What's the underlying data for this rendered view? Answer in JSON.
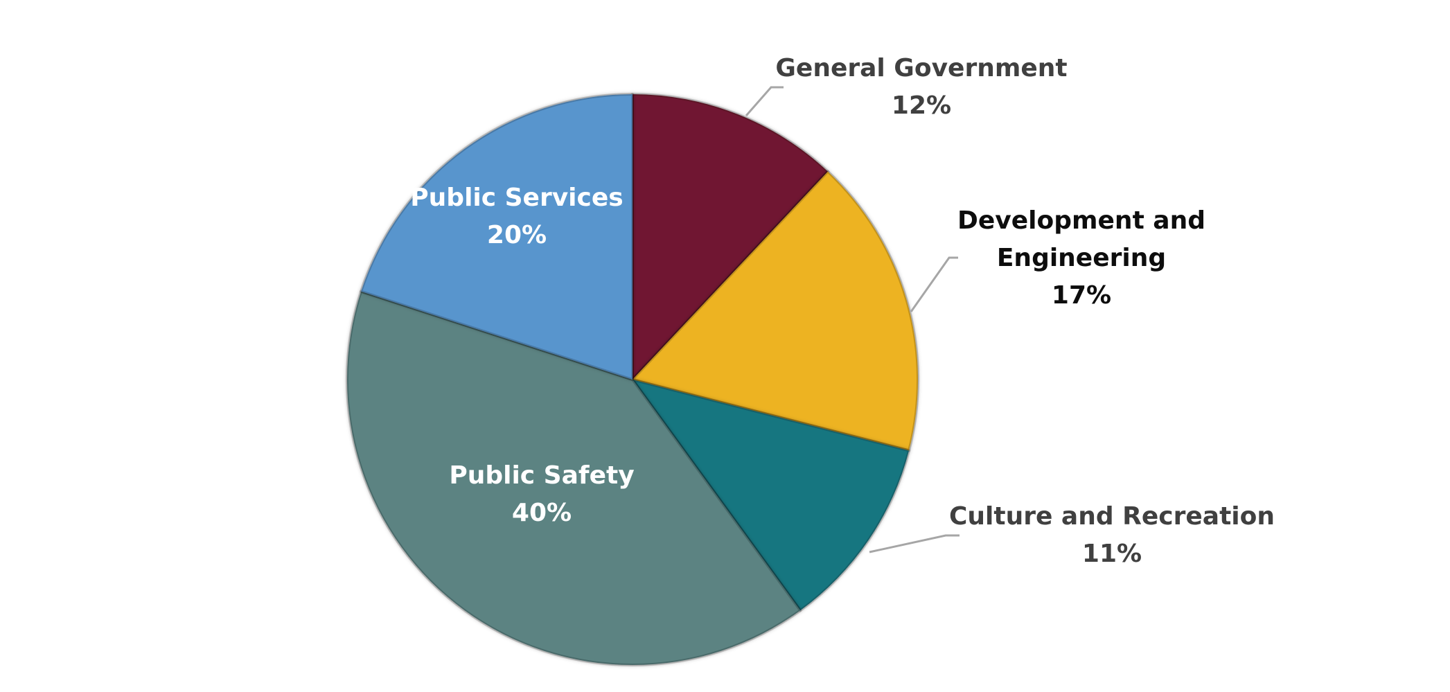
{
  "chart_data": {
    "type": "pie",
    "title": "",
    "unit": "%",
    "slices": [
      {
        "label": "General Government",
        "label_lines": [
          "General Government"
        ],
        "value": 12,
        "value_label": "12%",
        "color": "#701830",
        "label_color": "#404040",
        "label_position": "outside"
      },
      {
        "label": "Development and Engineering",
        "label_lines": [
          "Development and",
          "Engineering"
        ],
        "value": 17,
        "value_label": "17%",
        "color": "#EDB321",
        "label_color": "#0d0d0d",
        "label_position": "outside"
      },
      {
        "label": "Culture and Recreation",
        "label_lines": [
          "Culture and Recreation"
        ],
        "value": 11,
        "value_label": "11%",
        "color": "#187680",
        "label_color": "#404040",
        "label_position": "outside"
      },
      {
        "label": "Public Safety",
        "label_lines": [
          "Public Safety"
        ],
        "value": 40,
        "value_label": "40%",
        "color": "#5B8382",
        "label_color": "#ffffff",
        "label_position": "inside"
      },
      {
        "label": "Public Services",
        "label_lines": [
          "Public Services"
        ],
        "value": 20,
        "value_label": "20%",
        "color": "#5895CD",
        "label_color": "#ffffff",
        "label_position": "inside"
      }
    ],
    "start_angle": "12 o'clock",
    "direction": "clockwise",
    "legend": "none"
  }
}
